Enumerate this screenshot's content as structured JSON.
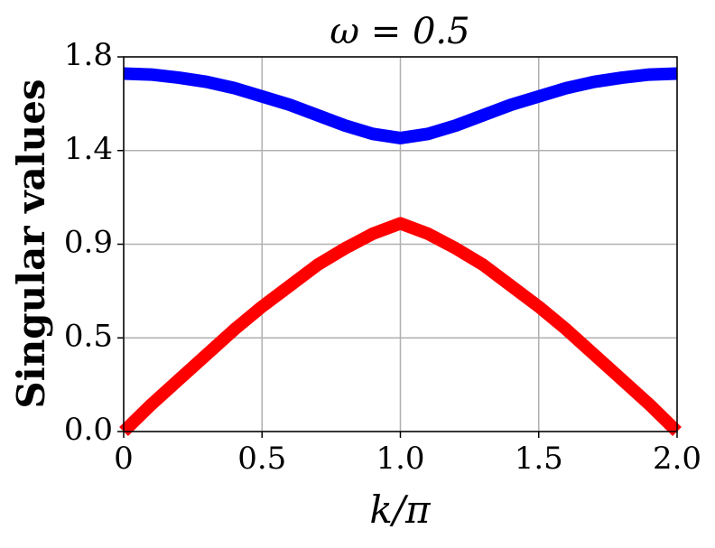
{
  "chart_data": {
    "type": "line",
    "title": "ω = 0.5",
    "xlabel": "k/π",
    "ylabel": "Singular values",
    "x": [
      0,
      0.1,
      0.2,
      0.3,
      0.4,
      0.5,
      0.6,
      0.7,
      0.8,
      0.9,
      1.0,
      1.1,
      1.2,
      1.3,
      1.4,
      1.5,
      1.6,
      1.7,
      1.8,
      1.9,
      2.0
    ],
    "series": [
      {
        "color": "#0000ff",
        "values": [
          1.72,
          1.715,
          1.7,
          1.68,
          1.65,
          1.61,
          1.57,
          1.52,
          1.47,
          1.43,
          1.41,
          1.43,
          1.47,
          1.52,
          1.57,
          1.61,
          1.65,
          1.68,
          1.7,
          1.715,
          1.72
        ]
      },
      {
        "color": "#ff0000",
        "values": [
          0,
          0.13,
          0.25,
          0.37,
          0.49,
          0.6,
          0.7,
          0.8,
          0.88,
          0.95,
          1.0,
          0.95,
          0.88,
          0.8,
          0.7,
          0.6,
          0.49,
          0.37,
          0.25,
          0.13,
          0
        ]
      }
    ],
    "xlim": [
      0,
      2
    ],
    "xticks": [
      0,
      0.5,
      {
        "value": 1,
        "label": "1.0"
      },
      1.5,
      {
        "value": 2,
        "label": "2.0"
      }
    ],
    "ylim": [
      0,
      1.8
    ],
    "yticks": [
      {
        "value": 0,
        "label": "0.0"
      },
      {
        "value": 0.45,
        "label": "0.5"
      },
      0.9,
      {
        "value": 1.35,
        "label": "1.4"
      },
      1.8
    ],
    "grid": true
  }
}
